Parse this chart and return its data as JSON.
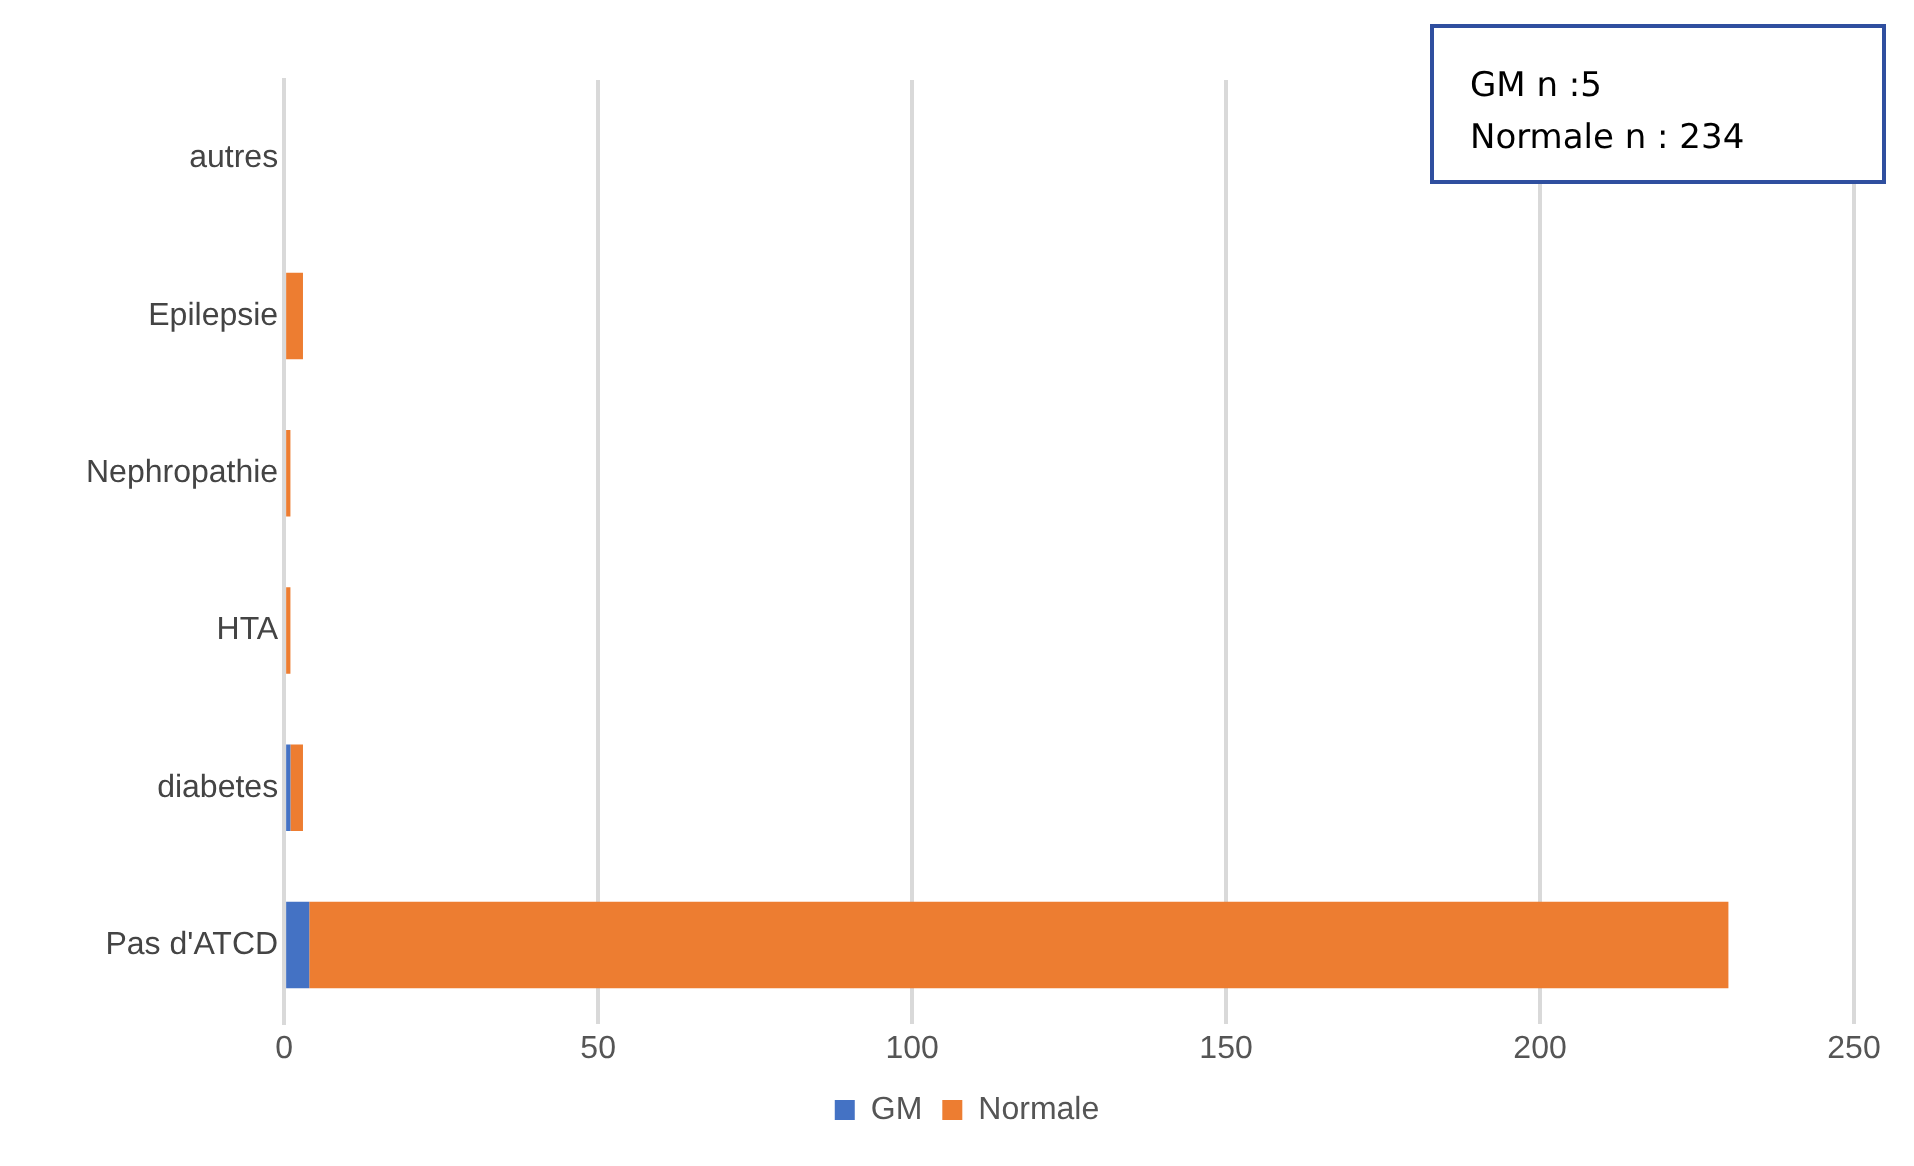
{
  "chart_data": {
    "type": "bar",
    "orientation": "horizontal",
    "stacked": true,
    "categories": [
      "autres",
      "Epilepsie",
      "Nephropathie",
      "HTA",
      "diabetes",
      "Pas d'ATCD"
    ],
    "series": [
      {
        "name": "GM",
        "color": "#4472c4",
        "values": [
          0,
          0,
          0,
          0,
          1,
          4
        ]
      },
      {
        "name": "Normale",
        "color": "#ed7d31",
        "values": [
          0,
          3,
          1,
          1,
          2,
          226
        ]
      }
    ],
    "xlim": [
      0,
      250
    ],
    "xticks": [
      0,
      50,
      100,
      150,
      200,
      250
    ],
    "grid": "x",
    "legend": "bottom",
    "annotations": [
      "GM n :5",
      "Normale n : 234"
    ]
  }
}
